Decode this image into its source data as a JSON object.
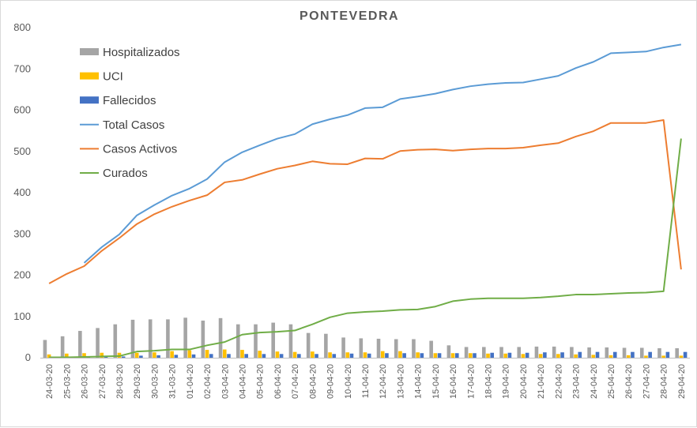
{
  "chart_data": {
    "type": "bar",
    "title": "PONTEVEDRA",
    "xlabel": "",
    "ylabel": "",
    "ylim": [
      0,
      800
    ],
    "yticks": [
      0,
      100,
      200,
      300,
      400,
      500,
      600,
      700,
      800
    ],
    "grid": false,
    "legend_position": "top-left",
    "categories": [
      "24-03-20",
      "25-03-20",
      "26-03-20",
      "27-03-20",
      "28-03-20",
      "29-03-20",
      "30-03-20",
      "31-03-20",
      "01-04-20",
      "02-04-20",
      "03-04-20",
      "04-04-20",
      "05-04-20",
      "06-04-20",
      "07-04-20",
      "08-04-20",
      "09-04-20",
      "10-04-20",
      "11-04-20",
      "12-04-20",
      "13-04-20",
      "14-04-20",
      "15-04-20",
      "16-04-20",
      "17-04-20",
      "18-04-20",
      "19-04-20",
      "20-04-20",
      "21-04-20",
      "22-04-20",
      "23-04-20",
      "24-04-20",
      "25-04-20",
      "26-04-20",
      "27-04-20",
      "28-04-20",
      "29-04-20"
    ],
    "bar_series": [
      {
        "name": "Hospitalizados",
        "color": "#a5a5a5",
        "values": [
          43,
          52,
          65,
          72,
          81,
          92,
          93,
          93,
          97,
          90,
          96,
          81,
          81,
          85,
          81,
          60,
          58,
          49,
          47,
          46,
          45,
          45,
          41,
          30,
          26,
          26,
          26,
          26,
          27,
          27,
          26,
          25,
          25,
          24,
          24,
          23,
          23
        ]
      },
      {
        "name": "UCI",
        "color": "#ffc000",
        "values": [
          8,
          10,
          11,
          12,
          12,
          12,
          13,
          16,
          18,
          19,
          20,
          19,
          17,
          15,
          14,
          15,
          13,
          13,
          13,
          16,
          16,
          13,
          11,
          11,
          11,
          10,
          10,
          9,
          9,
          9,
          8,
          7,
          6,
          6,
          5,
          5,
          5
        ]
      },
      {
        "name": "Fallecidos",
        "color": "#4472c4",
        "values": [
          1,
          1,
          1,
          2,
          3,
          5,
          6,
          7,
          8,
          9,
          9,
          9,
          9,
          9,
          9,
          9,
          9,
          10,
          10,
          11,
          11,
          11,
          11,
          11,
          11,
          12,
          12,
          12,
          13,
          13,
          14,
          14,
          14,
          14,
          14,
          14,
          14
        ]
      }
    ],
    "line_series": [
      {
        "name": "Total Casos",
        "color": "#5b9bd5",
        "values": [
          null,
          null,
          230,
          268,
          299,
          345,
          370,
          393,
          410,
          433,
          474,
          498,
          515,
          531,
          542,
          566,
          578,
          588,
          605,
          607,
          627,
          633,
          640,
          650,
          658,
          663,
          666,
          667,
          675,
          683,
          702,
          717,
          738,
          740,
          742,
          752,
          759
        ]
      },
      {
        "name": "Casos Activos",
        "color": "#ed7d31",
        "values": [
          180,
          203,
          222,
          259,
          290,
          324,
          348,
          366,
          381,
          394,
          425,
          431,
          445,
          458,
          466,
          476,
          470,
          469,
          483,
          482,
          501,
          504,
          505,
          502,
          505,
          507,
          507,
          509,
          515,
          520,
          536,
          549,
          569,
          569,
          569,
          576,
          214
        ]
      },
      {
        "name": "Curados",
        "color": "#70ad47",
        "values": [
          1,
          1,
          2,
          3,
          4,
          15,
          17,
          20,
          20,
          30,
          38,
          56,
          61,
          63,
          66,
          81,
          98,
          108,
          111,
          113,
          116,
          117,
          124,
          137,
          142,
          144,
          144,
          144,
          146,
          149,
          153,
          153,
          155,
          157,
          158,
          161,
          531
        ]
      }
    ]
  }
}
